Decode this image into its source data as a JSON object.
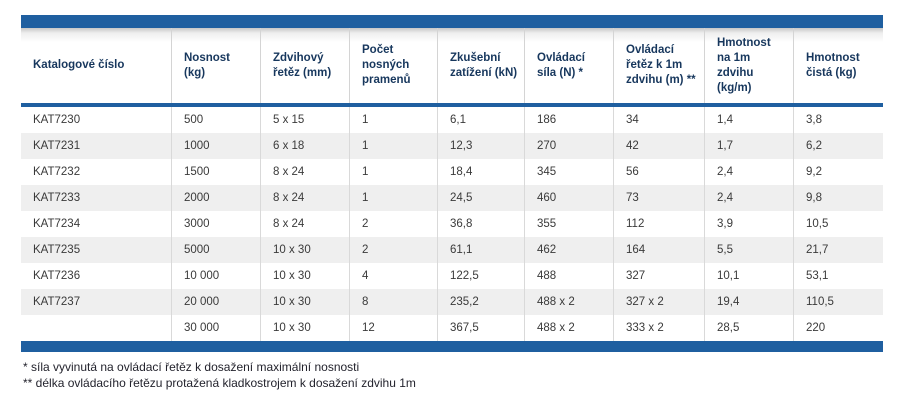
{
  "colors": {
    "accent_blue": "#1f5fa0",
    "header_text": "#17375d",
    "row_stripe": "#efefef",
    "body_text": "#3a3a3a"
  },
  "table": {
    "columns": [
      "Katalogové číslo",
      "Nosnost (kg)",
      "Zdvihový řetěz (mm)",
      "Počet nosných pramenů",
      "Zkušební zatížení (kN)",
      "Ovládací síla (N) *",
      "Ovládací řetěz k 1m zdvihu (m) **",
      "Hmotnost na 1m zdvihu (kg/m)",
      "Hmotnost čistá (kg)"
    ],
    "rows": [
      [
        "KAT7230",
        "500",
        "5 x 15",
        "1",
        "6,1",
        "186",
        "34",
        "1,4",
        "3,8"
      ],
      [
        "KAT7231",
        "1000",
        "6 x 18",
        "1",
        "12,3",
        "270",
        "42",
        "1,7",
        "6,2"
      ],
      [
        "KAT7232",
        "1500",
        "8 x 24",
        "1",
        "18,4",
        "345",
        "56",
        "2,4",
        "9,2"
      ],
      [
        "KAT7233",
        "2000",
        "8 x 24",
        "1",
        "24,5",
        "460",
        "73",
        "2,4",
        "9,8"
      ],
      [
        "KAT7234",
        "3000",
        "8 x 24",
        "2",
        "36,8",
        "355",
        "112",
        "3,9",
        "10,5"
      ],
      [
        "KAT7235",
        "5000",
        "10 x 30",
        "2",
        "61,1",
        "462",
        "164",
        "5,5",
        "21,7"
      ],
      [
        "KAT7236",
        "10 000",
        "10 x 30",
        "4",
        "122,5",
        "488",
        "327",
        "10,1",
        "53,1"
      ],
      [
        "KAT7237",
        "20 000",
        "10 x 30",
        "8",
        "235,2",
        "488 x 2",
        "327 x 2",
        "19,4",
        "110,5"
      ],
      [
        "",
        "30 000",
        "10 x 30",
        "12",
        "367,5",
        "488 x 2",
        "333 x 2",
        "28,5",
        "220"
      ]
    ]
  },
  "footnotes": [
    "* síla vyvinutá na ovládací řetěz k dosažení maximální nosnosti",
    "** délka ovládacího řetězu protažená kladkostrojem k dosažení zdvihu 1m"
  ]
}
